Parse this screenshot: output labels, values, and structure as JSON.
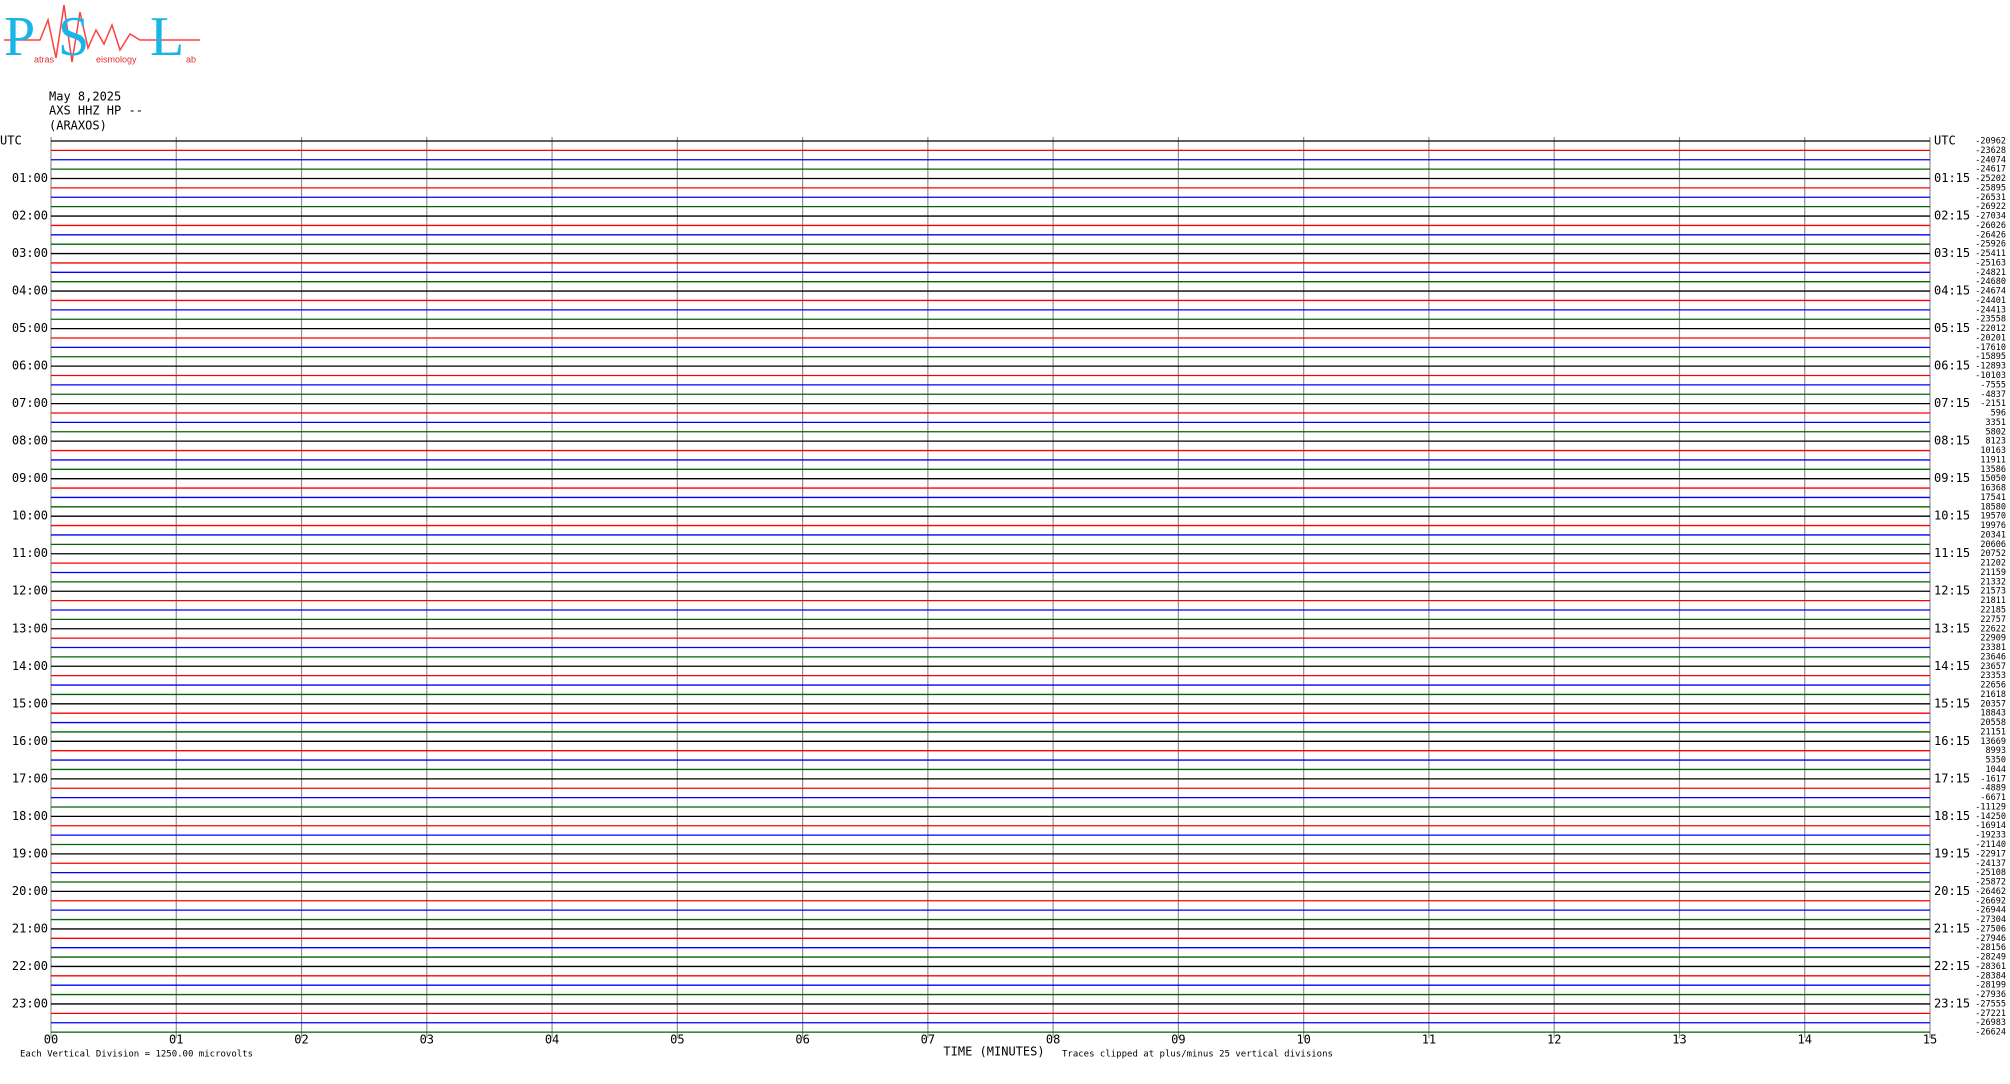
{
  "logo": {
    "letters": [
      "P",
      "S",
      "L"
    ],
    "words": [
      "atras",
      "eismology",
      "ab"
    ]
  },
  "chart_data": {
    "type": "helicorder",
    "date": "May 8,2025",
    "station": "AXS HHZ HP --",
    "location": "(ARAXOS)",
    "left_labels": [
      "UTC",
      "01:00",
      "02:00",
      "03:00",
      "04:00",
      "05:00",
      "06:00",
      "07:00",
      "08:00",
      "09:00",
      "10:00",
      "11:00",
      "12:00",
      "13:00",
      "14:00",
      "15:00",
      "16:00",
      "17:00",
      "18:00",
      "19:00",
      "20:00",
      "21:00",
      "22:00",
      "23:00"
    ],
    "right_labels": [
      "UTC",
      "01:15",
      "02:15",
      "03:15",
      "04:15",
      "05:15",
      "06:15",
      "07:15",
      "08:15",
      "09:15",
      "10:15",
      "11:15",
      "12:15",
      "13:15",
      "14:15",
      "15:15",
      "16:15",
      "17:15",
      "18:15",
      "19:15",
      "20:15",
      "21:15",
      "22:15",
      "23:15"
    ],
    "offsets": [
      -20962,
      -23628,
      -24074,
      -24617,
      -25202,
      -25895,
      -26531,
      -26922,
      -27034,
      -26026,
      -26426,
      -25926,
      -25411,
      -25163,
      -24821,
      -24680,
      -24674,
      -24401,
      -24413,
      -23558,
      -22012,
      -20201,
      -17610,
      -15895,
      -12893,
      -10103,
      -7555,
      -4837,
      -2151,
      596,
      3351,
      5802,
      8123,
      10163,
      11911,
      13586,
      15050,
      16368,
      17541,
      18580,
      19570,
      19976,
      20341,
      20606,
      20752,
      21202,
      21159,
      21332,
      21573,
      21811,
      22185,
      22757,
      22622,
      22909,
      23381,
      23646,
      23657,
      23353,
      22656,
      21618,
      20357,
      18843,
      20558,
      21151,
      13669,
      8993,
      5350,
      1044,
      -1617,
      -4889,
      -6671,
      -11129,
      -14250,
      -16914,
      -19233,
      -21140,
      -22917,
      -24137,
      -25108,
      -25872,
      -26462,
      -26692,
      -26944,
      -27304,
      -27506,
      -27946,
      -28156,
      -28249,
      -28361,
      -28384,
      -28199,
      -27936,
      -27555,
      -27221,
      -26983,
      -26624
    ],
    "colors": [
      "#000000",
      "#ff0000",
      "#0000ff",
      "#006400"
    ],
    "xlim": [
      0,
      15
    ],
    "xticks": [
      {
        "value": 0,
        "label": "00"
      },
      {
        "value": 1,
        "label": "01"
      },
      {
        "value": 2,
        "label": "02"
      },
      {
        "value": 3,
        "label": "03"
      },
      {
        "value": 4,
        "label": "04"
      },
      {
        "value": 5,
        "label": "05"
      },
      {
        "value": 6,
        "label": "06"
      },
      {
        "value": 7,
        "label": "07"
      },
      {
        "value": 8,
        "label": "08"
      },
      {
        "value": 9,
        "label": "09"
      },
      10,
      11,
      12,
      13,
      14,
      15
    ],
    "xlabel": "TIME (MINUTES)",
    "footer_left": "Each Vertical Division = 1250.00 microvolts",
    "footer_right": "Traces clipped at plus/minus 25 vertical divisions",
    "grid": true
  }
}
